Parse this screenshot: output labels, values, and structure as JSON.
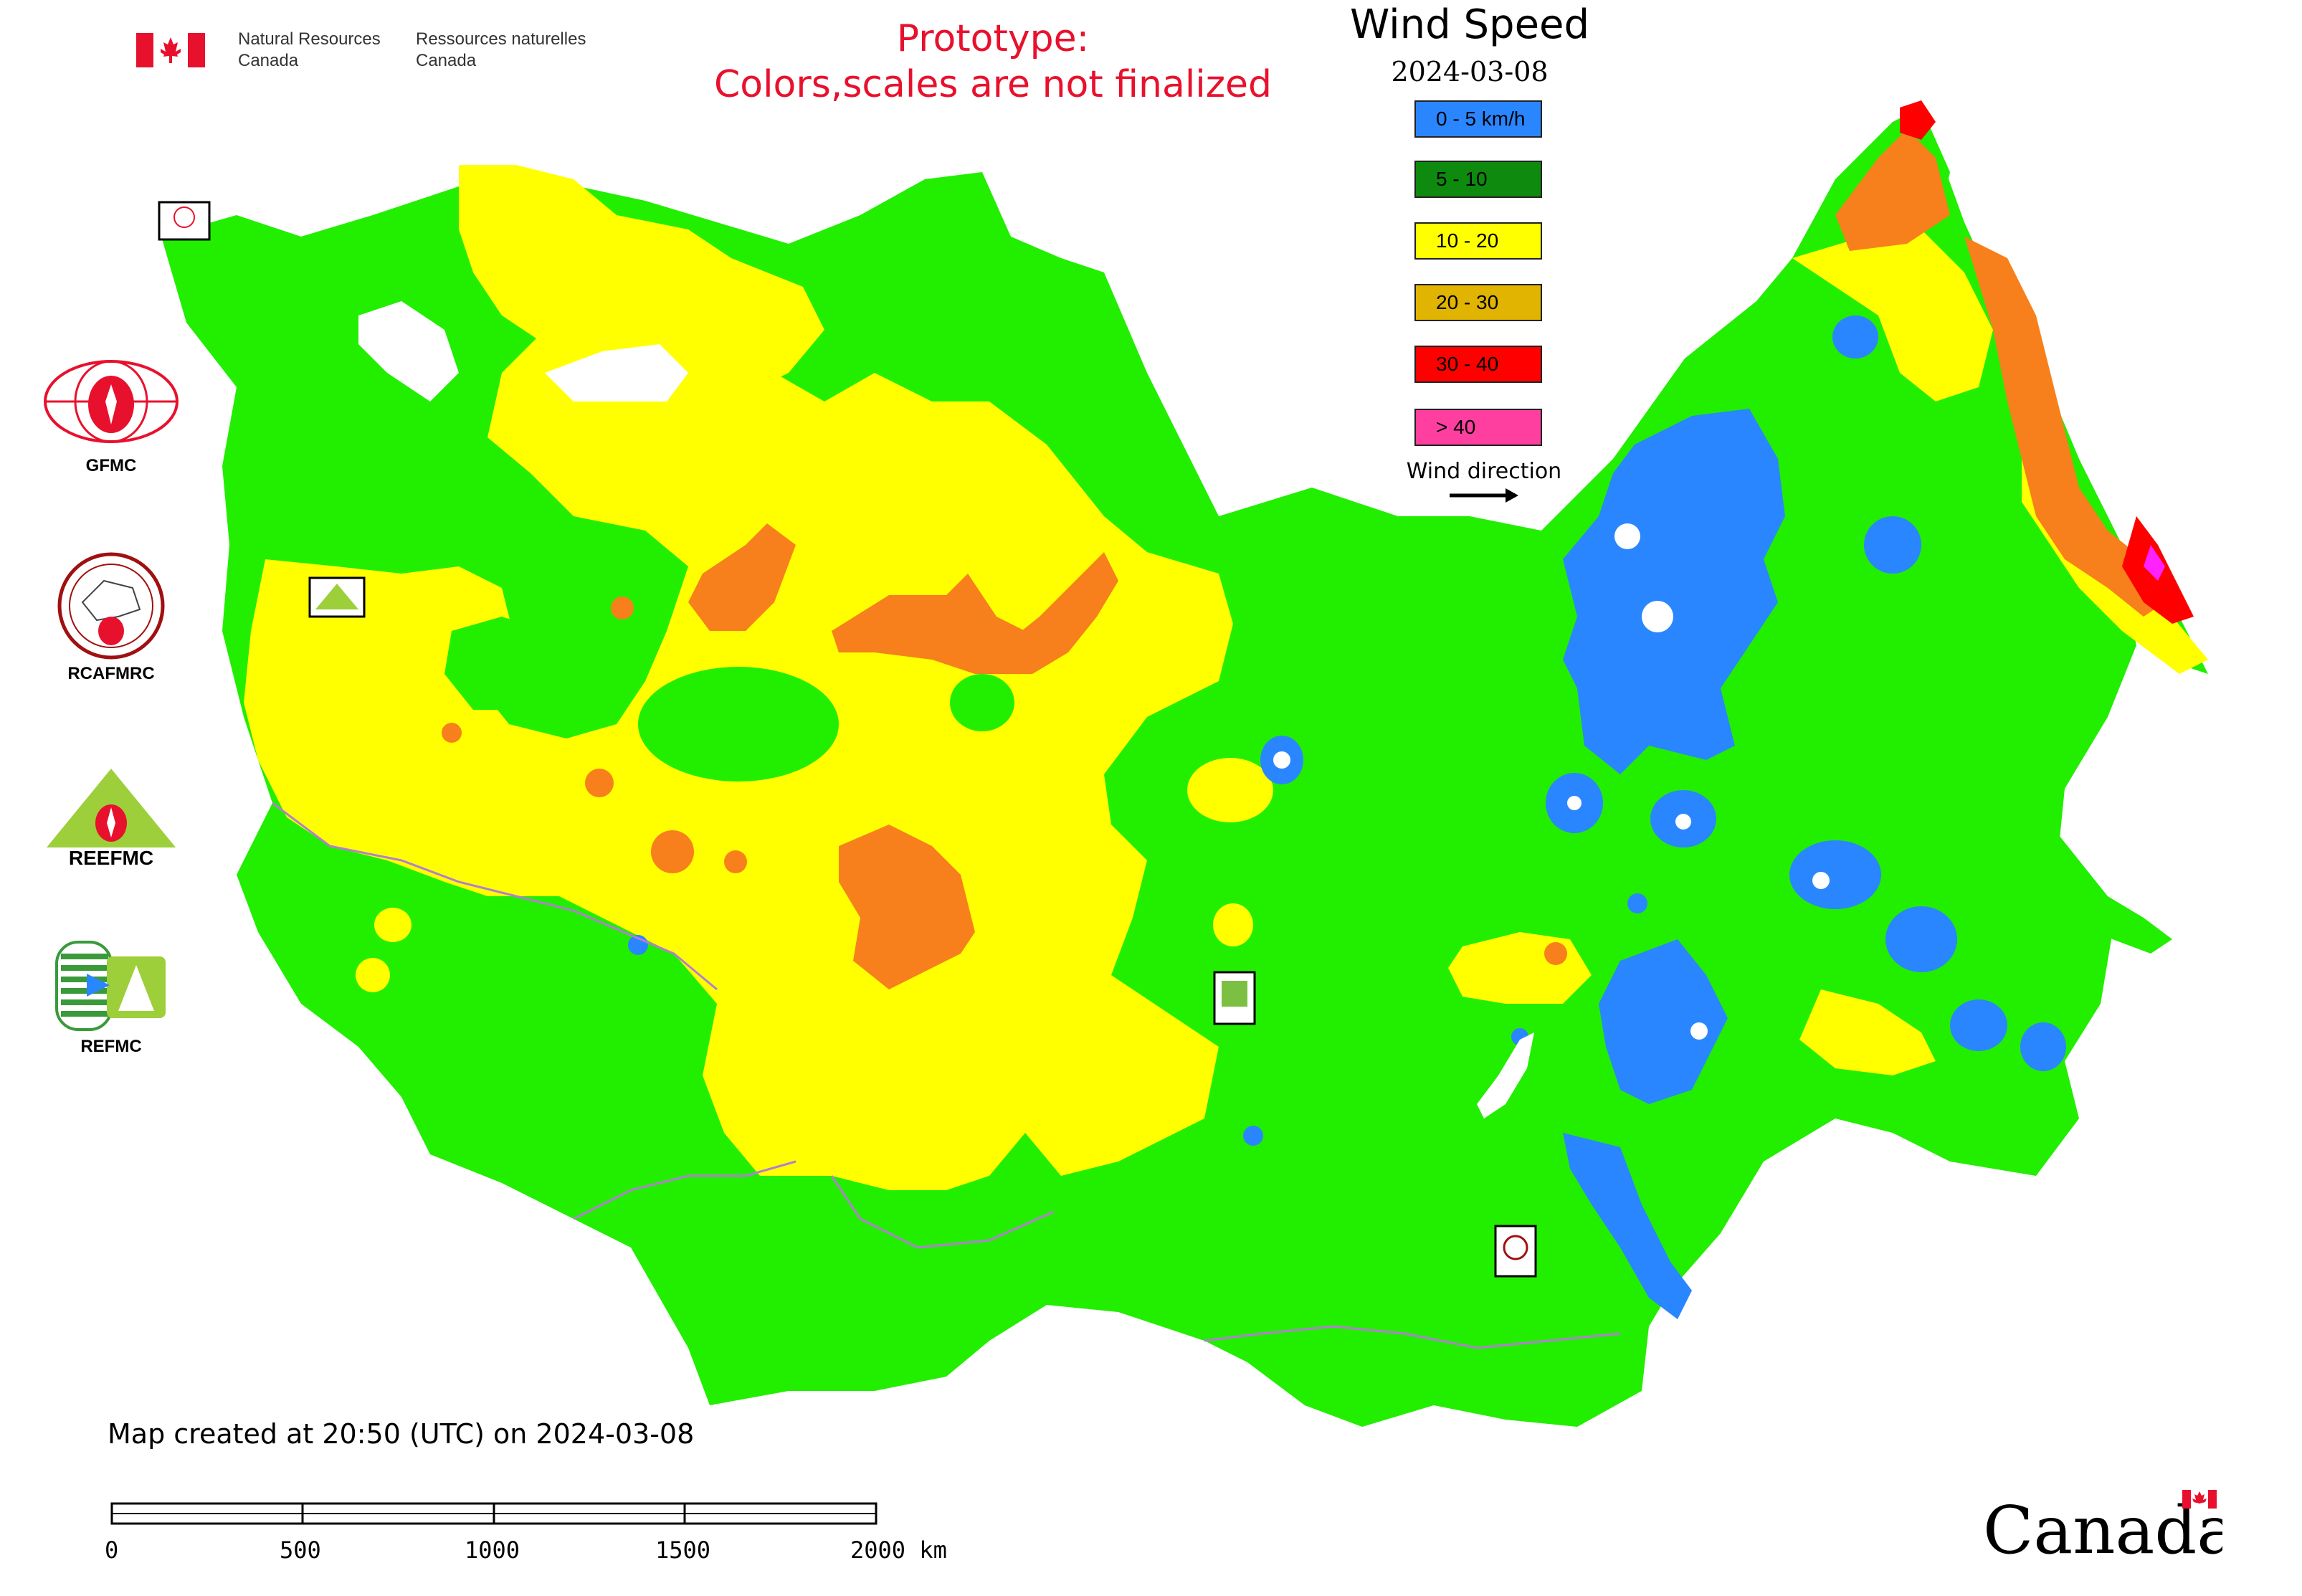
{
  "header": {
    "dept_en_line1": "Natural Resources",
    "dept_en_line2": "Canada",
    "dept_fr_line1": "Ressources naturelles",
    "dept_fr_line2": "Canada",
    "prototype_line1": "Prototype:",
    "prototype_line2": "Colors,scales are not finalized"
  },
  "legend": {
    "title": "Wind Speed",
    "date": "2024-03-08",
    "classes": [
      {
        "label": "0 - 5 km/h",
        "color": "#2a86ff"
      },
      {
        "label": "5 - 10",
        "color": "#0e8a0e"
      },
      {
        "label": "10 - 20",
        "color": "#ffff00"
      },
      {
        "label": "20 - 30",
        "color": "#e0b400"
      },
      {
        "label": "30 - 40",
        "color": "#ff0000"
      },
      {
        "label": "> 40",
        "color": "#ff3fa0"
      }
    ],
    "wind_direction_label": "Wind direction"
  },
  "colors": {
    "green": "#22ee00",
    "yellow": "#ffff00",
    "orange": "#f7801c",
    "blue": "#2a86ff",
    "red": "#ff0000",
    "magenta": "#ff22ff",
    "boundary": "#b27fd0"
  },
  "logos": {
    "gfmc": "GFMC",
    "rcafmrc": "RCAFMRC",
    "reefmc_text": "REEFMC",
    "refmc": "REFMC"
  },
  "footer": {
    "map_created": "Map created at 20:50 (UTC) on 2024-03-08",
    "scale_ticks": [
      "0",
      "500",
      "1000",
      "1500",
      "2000 km"
    ],
    "wordmark": "Canada"
  }
}
